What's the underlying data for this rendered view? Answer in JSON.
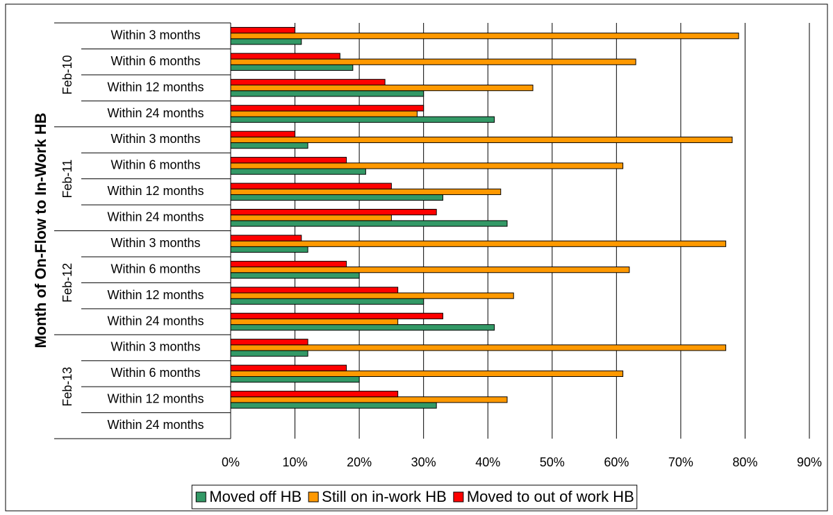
{
  "chart_data": {
    "type": "bar",
    "orientation": "horizontal",
    "y_axis_label": "Month of On-Flow to In-Work HB",
    "groups": [
      "Feb-10",
      "Feb-11",
      "Feb-12",
      "Feb-13"
    ],
    "categories": [
      "Within 3 months",
      "Within 6 months",
      "Within 12 months",
      "Within 24 months",
      "Within 3 months",
      "Within 6 months",
      "Within 12 months",
      "Within 24 months",
      "Within 3 months",
      "Within 6 months",
      "Within 12 months",
      "Within 24 months",
      "Within 3 months",
      "Within 6 months",
      "Within 12 months",
      "Within 24 months"
    ],
    "series": [
      {
        "name": "Moved off HB",
        "color": "#339966",
        "values": [
          11,
          19,
          30,
          41,
          12,
          21,
          33,
          43,
          12,
          20,
          30,
          41,
          12,
          20,
          32,
          null
        ]
      },
      {
        "name": "Still on in-work HB",
        "color": "#ff9900",
        "values": [
          79,
          63,
          47,
          29,
          78,
          61,
          42,
          25,
          77,
          62,
          44,
          26,
          77,
          61,
          43,
          null
        ]
      },
      {
        "name": "Moved to out of work HB",
        "color": "#ff0000",
        "values": [
          10,
          17,
          24,
          30,
          10,
          18,
          25,
          32,
          11,
          18,
          26,
          33,
          12,
          18,
          26,
          null
        ]
      }
    ],
    "xlim": [
      0,
      90
    ],
    "xticks": [
      {
        "value": 0,
        "label": "0%"
      },
      {
        "value": 10,
        "label": "10%"
      },
      {
        "value": 20,
        "label": "20%"
      },
      {
        "value": 30,
        "label": "30%"
      },
      {
        "value": 40,
        "label": "40%"
      },
      {
        "value": 50,
        "label": "50%"
      },
      {
        "value": 60,
        "label": "60%"
      },
      {
        "value": 70,
        "label": "70%"
      },
      {
        "value": 80,
        "label": "80%"
      },
      {
        "value": 90,
        "label": "90%"
      }
    ],
    "grid": true,
    "legend": "bottom"
  }
}
